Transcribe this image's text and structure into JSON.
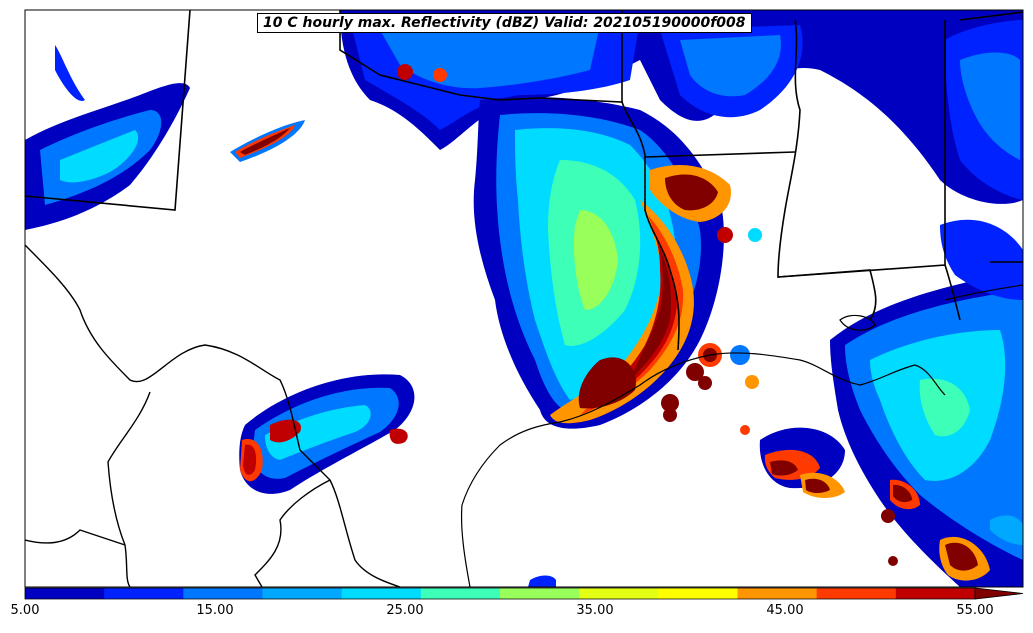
{
  "title": "10 C hourly max. Reflectivity (dBZ) Valid: 202105190000f008",
  "colorbar": {
    "colors": [
      "#0000c0",
      "#0022ff",
      "#0077ff",
      "#00a8ff",
      "#00dcff",
      "#3effb7",
      "#99ff5a",
      "#e3ff14",
      "#ffff00",
      "#ff9500",
      "#ff3a00",
      "#c00000",
      "#800000"
    ],
    "ticks": [
      "5.00",
      "15.00",
      "25.00",
      "35.00",
      "45.00",
      "55.00"
    ]
  },
  "palette": {
    "boundary": "#000000",
    "background": "#ffffff"
  }
}
